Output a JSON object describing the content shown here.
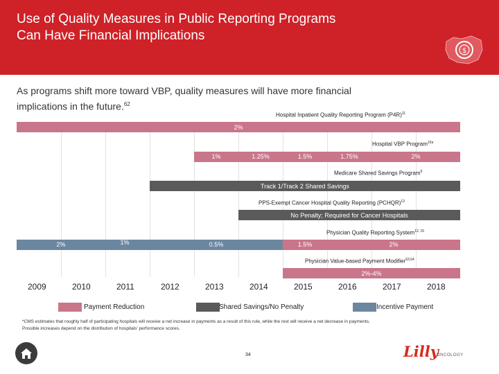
{
  "title": [
    "Use of Quality Measures in Public Reporting Programs",
    "Can Have Financial Implications"
  ],
  "intro": {
    "text": "As programs shift more toward VBP, quality measures will have more financial implications in the future.",
    "ref": "62"
  },
  "programs": {
    "iqr": {
      "label": "Hospital Inpatient Quality Reporting Program (P4R)",
      "ref": "11",
      "bar": "2%"
    },
    "vbp": {
      "label": "Hospital VBP Program",
      "ref": "10a",
      "segments": [
        "1%",
        "1.25%",
        "1.5%",
        "1.75%",
        "2%"
      ]
    },
    "mssp": {
      "label": "Medicare Shared Savings Program",
      "ref": "9",
      "bar": "Track 1/Track 2 Shared Savings"
    },
    "pchqr": {
      "label": "PPS-Exempt Cancer Hospital Quality Reporting (PCHQR)",
      "ref": "13",
      "bar": "No Penalty; Required for Cancer Hospitals"
    },
    "pqrs": {
      "label": "Physician Quality Reporting System",
      "ref": "12, 15",
      "incentives": [
        "2%",
        "1%",
        "0.5%"
      ],
      "reductions": [
        "1.5%",
        "2%"
      ]
    },
    "vbm": {
      "label": "Physician Value-based Payment Modifier",
      "ref": "63,64",
      "bar": "2%-4%"
    }
  },
  "years": [
    "2009",
    "2010",
    "2011",
    "2012",
    "2013",
    "2014",
    "2015",
    "2016",
    "2017",
    "2018"
  ],
  "legend": {
    "payment_reduction": "Payment Reduction",
    "shared_savings": "Shared Savings/No Penalty",
    "incentive": "Incentive Payment"
  },
  "colors": {
    "header": "#cf2128",
    "reduction": "#c9768a",
    "shared": "#5a5a5a",
    "incentive": "#6b87a0"
  },
  "footnote": [
    "*CMS estimates that roughly half of participating hospitals will receive a net increase in payments as a result of this rule, while the rest will receive a net decrease in payments.",
    "Possible increases depend on the distribution of hospitals' performance scores."
  ],
  "page_number": "34",
  "logo": {
    "script": "Lilly",
    "sub": "ONCOLOGY"
  }
}
